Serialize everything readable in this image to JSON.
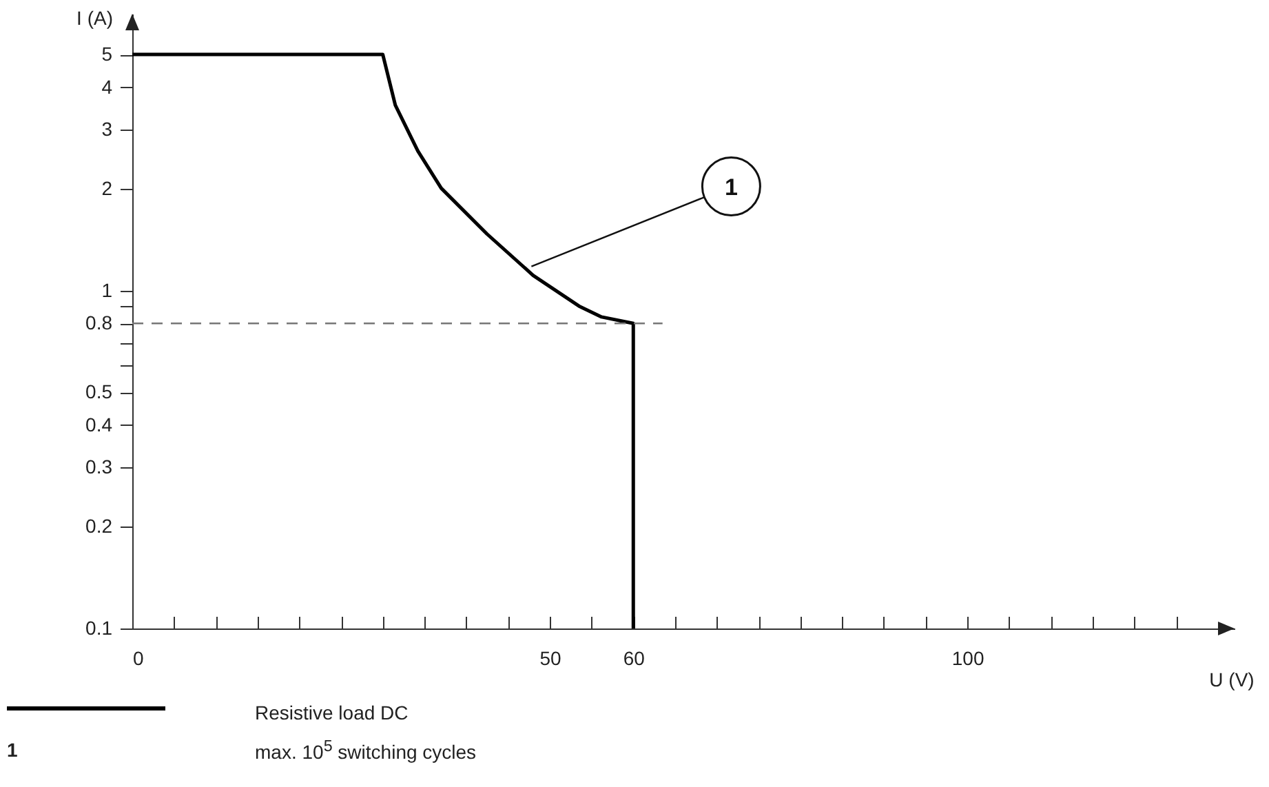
{
  "chart_data": {
    "type": "line",
    "xlabel": "U (V)",
    "ylabel": "I (A)",
    "log": "y",
    "xlim": [
      0,
      132
    ],
    "ylim": [
      0.1,
      6.6
    ],
    "xticks": [
      0,
      {
        "value": 5,
        "label": null
      },
      {
        "value": 10,
        "label": null
      },
      {
        "value": 15,
        "label": null
      },
      {
        "value": 20,
        "label": null
      },
      {
        "value": 25,
        "label": null
      },
      {
        "value": 30,
        "label": null
      },
      {
        "value": 35,
        "label": null
      },
      {
        "value": 40,
        "label": null
      },
      {
        "value": 45,
        "label": null
      },
      50,
      {
        "value": 55,
        "label": null
      },
      60,
      {
        "value": 65,
        "label": null
      },
      {
        "value": 70,
        "label": null
      },
      {
        "value": 75,
        "label": null
      },
      {
        "value": 80,
        "label": null
      },
      {
        "value": 85,
        "label": null
      },
      {
        "value": 90,
        "label": null
      },
      {
        "value": 95,
        "label": null
      },
      100,
      {
        "value": 105,
        "label": null
      },
      {
        "value": 110,
        "label": null
      },
      {
        "value": 115,
        "label": null
      },
      {
        "value": 120,
        "label": null
      },
      {
        "value": 125,
        "label": null
      }
    ],
    "yticks": [
      0.1,
      0.2,
      0.3,
      0.4,
      0.5,
      {
        "value": 0.6,
        "label": null
      },
      {
        "value": 0.7,
        "label": null
      },
      0.8,
      {
        "value": 0.9,
        "label": null
      },
      1,
      2,
      3,
      4,
      5
    ],
    "series": [
      {
        "name": "Resistive load DC",
        "color": "#000000",
        "x": [
          0,
          30,
          31.5,
          34.2,
          37,
          42.5,
          48,
          53.5,
          56.2,
          60,
          60
        ],
        "values": [
          5,
          5,
          3.54,
          2.59,
          2.01,
          1.47,
          1.11,
          0.9,
          0.836,
          0.8,
          0.1
        ]
      },
      {
        "color": "#777777",
        "line_style": "dashed",
        "x": [
          0,
          63.5
        ],
        "values": [
          0.8,
          0.8
        ]
      }
    ],
    "annotations": [
      {
        "text": "1",
        "x": 47.8,
        "y": 1.18
      },
      "max. 10$^{5}$ switching cycles"
    ],
    "legend": "bottom",
    "grid": false
  }
}
